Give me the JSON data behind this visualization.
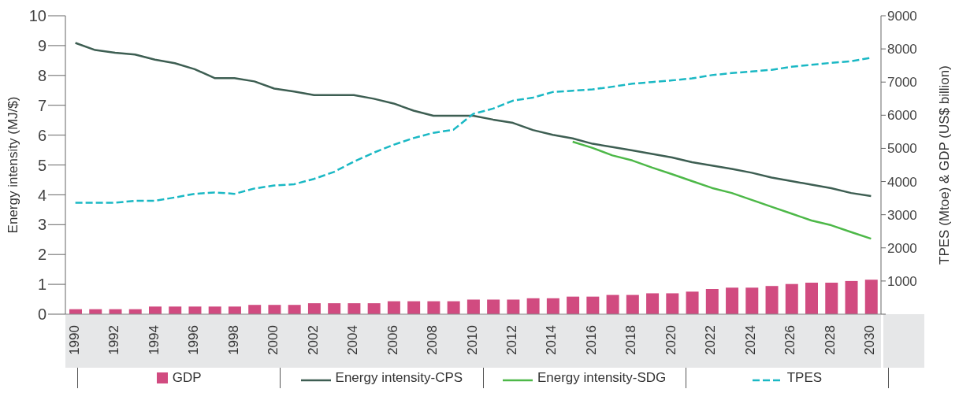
{
  "chart_data": {
    "type": "bar",
    "ylabel": "Energy intensity (MJ/$)",
    "y2label": "TPES (Mtoe) & GDP (US$ billion)",
    "categories": [
      "1990",
      null,
      "1992",
      null,
      "1994",
      null,
      "1996",
      null,
      "1998",
      null,
      "2000",
      null,
      "2002",
      null,
      "2004",
      null,
      "2006",
      null,
      "2008",
      null,
      "2010",
      null,
      "2012",
      null,
      "2014",
      null,
      "2016",
      null,
      "2018",
      null,
      "2020",
      null,
      "2022",
      null,
      "2024",
      null,
      "2026",
      null,
      "2028",
      null,
      "2030"
    ],
    "series": [
      {
        "name": "GDP",
        "axis": "y2",
        "color": "#d14b80",
        "values": [
          150,
          150,
          150,
          150,
          230,
          230,
          230,
          230,
          230,
          280,
          280,
          280,
          330,
          330,
          330,
          330,
          390,
          390,
          390,
          390,
          440,
          440,
          440,
          480,
          480,
          530,
          530,
          580,
          580,
          630,
          630,
          680,
          760,
          800,
          800,
          850,
          910,
          950,
          950,
          1000,
          1040
        ]
      },
      {
        "name": "Energy intensity-CPS",
        "type": "line",
        "color": "#3d5e52",
        "line_style": "solid",
        "values": [
          9.09,
          8.85,
          8.76,
          8.7,
          8.53,
          8.41,
          8.21,
          7.91,
          7.91,
          7.8,
          7.56,
          7.46,
          7.34,
          7.34,
          7.34,
          7.22,
          7.06,
          6.82,
          6.65,
          6.65,
          6.65,
          6.52,
          6.41,
          6.17,
          6.01,
          5.89,
          5.71,
          5.6,
          5.49,
          5.37,
          5.25,
          5.09,
          4.98,
          4.87,
          4.74,
          4.58,
          4.46,
          4.34,
          4.22,
          4.06,
          3.96
        ]
      },
      {
        "name": "Energy intensity-SDG",
        "type": "line",
        "color": "#4db848",
        "line_style": "solid",
        "values": [
          null,
          null,
          null,
          null,
          null,
          null,
          null,
          null,
          null,
          null,
          null,
          null,
          null,
          null,
          null,
          null,
          null,
          null,
          null,
          null,
          null,
          null,
          null,
          null,
          null,
          5.78,
          5.57,
          5.32,
          5.15,
          4.91,
          4.69,
          4.46,
          4.23,
          4.06,
          3.83,
          3.6,
          3.37,
          3.14,
          2.98,
          2.75,
          2.53
        ]
      },
      {
        "name": "TPES",
        "type": "line",
        "axis": "y2",
        "color": "#1ab8c4",
        "line_style": "dashed",
        "values": [
          3360,
          3360,
          3360,
          3420,
          3420,
          3520,
          3630,
          3670,
          3630,
          3790,
          3880,
          3920,
          4080,
          4290,
          4600,
          4870,
          5110,
          5310,
          5470,
          5560,
          6040,
          6200,
          6440,
          6530,
          6700,
          6740,
          6780,
          6860,
          6950,
          7000,
          7050,
          7110,
          7210,
          7270,
          7320,
          7370,
          7460,
          7520,
          7580,
          7630,
          7730
        ]
      }
    ],
    "ylim": [
      0,
      10
    ],
    "yticks": [
      0,
      1,
      2,
      3,
      4,
      5,
      6,
      7,
      8,
      9,
      10
    ],
    "y2lim": [
      0,
      9000
    ],
    "y2ticks": [
      {
        "value": 0,
        "label": null
      },
      1000,
      2000,
      3000,
      4000,
      5000,
      6000,
      7000,
      8000,
      9000
    ],
    "grid": false,
    "legend": "bottom",
    "marker": "none"
  }
}
